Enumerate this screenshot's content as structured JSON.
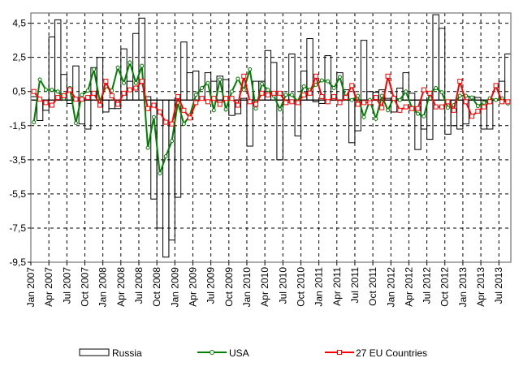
{
  "chart_data": {
    "type": "bar+line",
    "title": "",
    "xlabel": "",
    "ylabel": "",
    "ylim": [
      -9.5,
      5.1
    ],
    "yticks": [
      4.5,
      2.5,
      0.5,
      -1.5,
      -3.5,
      -5.5,
      -7.5,
      -9.5
    ],
    "ytick_labels": [
      "4,5",
      "2,5",
      "0,5",
      "-1,5",
      "-3,5",
      "-5,5",
      "-7,5",
      "-9,5"
    ],
    "grid": true,
    "legend_position": "bottom",
    "x_start": "Jan 2007",
    "x_end": "Aug 2013",
    "xtick_labels": [
      "Jan 2007",
      "Apr 2007",
      "Jul 2007",
      "Oct 2007",
      "Jan 2008",
      "Apr 2008",
      "Jul 2008",
      "Oct 2008",
      "Jan 2009",
      "Apr 2009",
      "Jul 2009",
      "Oct 2009",
      "Jan 2010",
      "Apr 2010",
      "Jul 2010",
      "Oct 2010",
      "Jan 2011",
      "Apr 2011",
      "Jul 2011",
      "Oct 2011",
      "Jan 2012",
      "Apr 2012",
      "Jul 2012",
      "Oct 2012",
      "Jan 2013",
      "Apr 2013",
      "Jul 2013"
    ],
    "series": [
      {
        "name": "Russia",
        "kind": "bar",
        "color": "#000000",
        "values": [
          0.2,
          -1.2,
          -0.6,
          3.7,
          4.7,
          1.5,
          -0.2,
          2.0,
          -1.4,
          -1.7,
          1.9,
          2.5,
          -0.7,
          -0.5,
          -0.5,
          3.0,
          1.1,
          3.9,
          4.8,
          0.2,
          -5.8,
          -7.5,
          -9.2,
          -8.2,
          -5.7,
          3.4,
          1.6,
          1.7,
          0.0,
          1.6,
          1.1,
          1.4,
          1.2,
          -0.9,
          -0.8,
          0.1,
          -2.7,
          1.1,
          1.1,
          2.9,
          2.2,
          -3.5,
          0.3,
          2.7,
          -2.1,
          1.7,
          3.6,
          -0.1,
          -0.2,
          2.6,
          0.1,
          1.6,
          0.6,
          -2.5,
          -1.8,
          3.5,
          0.5,
          0.45,
          0.6,
          0.1,
          -0.7,
          0.7,
          1.6,
          0.4,
          -2.9,
          -1.7,
          -2.3,
          5.0,
          4.2,
          -2.0,
          -1.5,
          -1.7,
          -1.4,
          0.2,
          0.15,
          -1.7,
          -1.7,
          0.0,
          1.1,
          2.7
        ]
      },
      {
        "name": "USA",
        "kind": "line",
        "color": "#008000",
        "values": [
          -1.3,
          1.2,
          0.6,
          0.6,
          0.5,
          0.1,
          0.7,
          -1.35,
          0.3,
          0.55,
          1.8,
          -0.1,
          0.8,
          0.55,
          1.9,
          1.0,
          2.2,
          1.0,
          2.0,
          -2.8,
          -1.0,
          -4.3,
          -3.3,
          -2.4,
          -0.15,
          -1.4,
          -0.9,
          0.3,
          0.7,
          1.0,
          -0.6,
          1.2,
          -0.55,
          0.5,
          1.25,
          0.6,
          1.8,
          -0.5,
          0.95,
          0.6,
          0.25,
          -0.55,
          0.3,
          0.3,
          -0.1,
          0.8,
          0.6,
          0.9,
          1.15,
          1.1,
          0.7,
          1.35,
          0.1,
          0.0,
          0.25,
          -1.0,
          0.0,
          -1.1,
          0.25,
          -0.6,
          0.15,
          0.0,
          0.5,
          -0.45,
          -0.8,
          -0.95,
          0.4,
          0.7,
          0.45,
          -0.45,
          -0.3,
          0.25,
          0.25,
          0.15,
          -0.35,
          -0.15,
          0.1,
          0.0,
          0.1,
          -0.2
        ]
      },
      {
        "name": "27 EU Countries",
        "kind": "line",
        "color": "#ff0000",
        "values": [
          0.5,
          0.05,
          -0.15,
          -0.3,
          0.15,
          0.25,
          0.6,
          0.05,
          0.05,
          0.15,
          0.4,
          -0.3,
          1.1,
          0.25,
          -0.25,
          0.4,
          0.6,
          0.7,
          1.1,
          -0.5,
          -0.3,
          -0.7,
          -1.3,
          -1.4,
          0.2,
          -0.6,
          -1.05,
          -0.15,
          0.1,
          -0.1,
          0.1,
          -0.25,
          0.1,
          0.1,
          -0.3,
          1.4,
          -0.1,
          -0.25,
          0.4,
          0.3,
          0.4,
          0.4,
          -0.15,
          -0.1,
          -0.15,
          0.3,
          0.4,
          1.4,
          0.2,
          -0.1,
          0.2,
          -0.15,
          0.15,
          0.85,
          -0.25,
          -0.15,
          -0.15,
          0.15,
          -0.45,
          1.4,
          0.1,
          -0.6,
          -0.4,
          -0.5,
          -0.5,
          0.6,
          0.4,
          -0.4,
          -0.4,
          -0.1,
          -0.6,
          1.1,
          -0.1,
          -0.95,
          -0.65,
          -0.4,
          -0.1,
          0.85,
          -0.1,
          -0.1
        ]
      }
    ]
  }
}
